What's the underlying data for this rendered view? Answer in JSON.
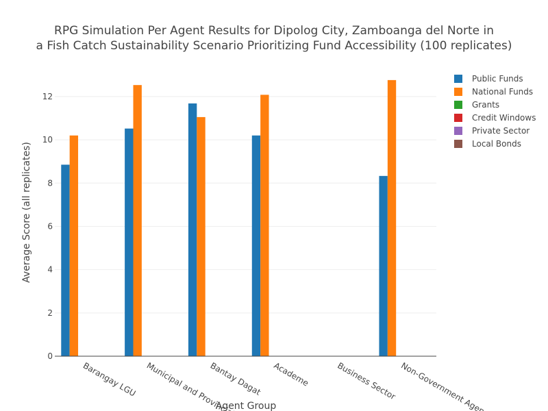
{
  "chart_data": {
    "type": "bar",
    "title_lines": [
      "RPG Simulation Per Agent Results for Dipolog City, Zamboanga del Norte in",
      "a Fish Catch Sustainability Scenario Prioritizing Fund Accessibility (100 replicates)"
    ],
    "xlabel": "Agent Group",
    "ylabel": "Average Score (all replicates)",
    "ylim": [
      0,
      13.2
    ],
    "yticks": [
      0,
      2,
      4,
      6,
      8,
      10,
      12
    ],
    "categories": [
      "Barangay LGU",
      "Municipal and Provincial LGU",
      "Bantay Dagat",
      "Academe",
      "Business Sector",
      "Non-Government Agencies"
    ],
    "series": [
      {
        "name": "Public Funds",
        "color": "#1f77b4",
        "values": [
          8.85,
          10.52,
          11.68,
          10.2,
          null,
          8.33
        ]
      },
      {
        "name": "National Funds",
        "color": "#ff7f0e",
        "values": [
          10.2,
          12.53,
          11.05,
          12.08,
          null,
          12.76
        ]
      },
      {
        "name": "Grants",
        "color": "#2ca02c",
        "values": [
          null,
          null,
          null,
          null,
          null,
          null
        ]
      },
      {
        "name": "Credit Windows",
        "color": "#d62728",
        "values": [
          null,
          null,
          null,
          null,
          null,
          null
        ]
      },
      {
        "name": "Private Sector",
        "color": "#9467bd",
        "values": [
          null,
          null,
          null,
          null,
          null,
          null
        ]
      },
      {
        "name": "Local Bonds",
        "color": "#8c564b",
        "values": [
          null,
          null,
          null,
          null,
          null,
          null
        ]
      }
    ],
    "grid": true,
    "legend_position": "top-right"
  }
}
